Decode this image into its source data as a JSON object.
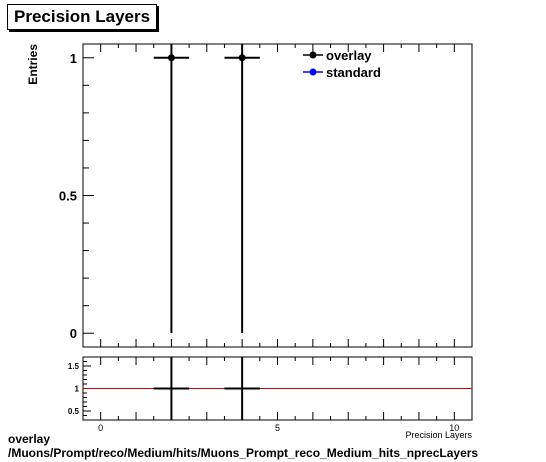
{
  "title": "Precision Layers",
  "footer": {
    "line1": "overlay",
    "line2": "/Muons/Prompt/reco/Medium/hits/Muons_Prompt_reco_Medium_hits_nprecLayers"
  },
  "colors": {
    "overlay": "#000000",
    "standard": "#0000ff",
    "ratio_line": "#cc0000"
  },
  "chart_data": [
    {
      "type": "scatter",
      "panel": "main",
      "ylabel": "Entries",
      "xlabel": "Precision Layers",
      "xlim": [
        -0.5,
        10.5
      ],
      "ylim": [
        -0.05,
        1.05
      ],
      "y_ticks": [
        0,
        0.5,
        1
      ],
      "y_tick_labels": [
        "0",
        "0.5",
        "1"
      ],
      "grid": false,
      "legend": "top-right",
      "series": [
        {
          "name": "overlay",
          "color": "#000000",
          "points": [
            {
              "x": 2,
              "y": 1,
              "xerr": 0.5,
              "yerr": 1
            },
            {
              "x": 4,
              "y": 1,
              "xerr": 0.5,
              "yerr": 1
            }
          ]
        },
        {
          "name": "standard",
          "color": "#0000ff",
          "points": []
        }
      ]
    },
    {
      "type": "scatter",
      "panel": "ratio",
      "xlim": [
        -0.5,
        10.5
      ],
      "ylim": [
        0.3,
        1.7
      ],
      "x_ticks": [
        0,
        5,
        10
      ],
      "x_tick_labels": [
        "0",
        "5",
        "10"
      ],
      "y_ticks": [
        0.5,
        1,
        1.5
      ],
      "y_tick_labels": [
        "0.5",
        "1",
        "1.5"
      ],
      "reference_line": 1,
      "points": [
        {
          "x": 2,
          "y": 1,
          "xerr": 0.5
        },
        {
          "x": 4,
          "y": 1,
          "xerr": 0.5
        }
      ]
    }
  ]
}
